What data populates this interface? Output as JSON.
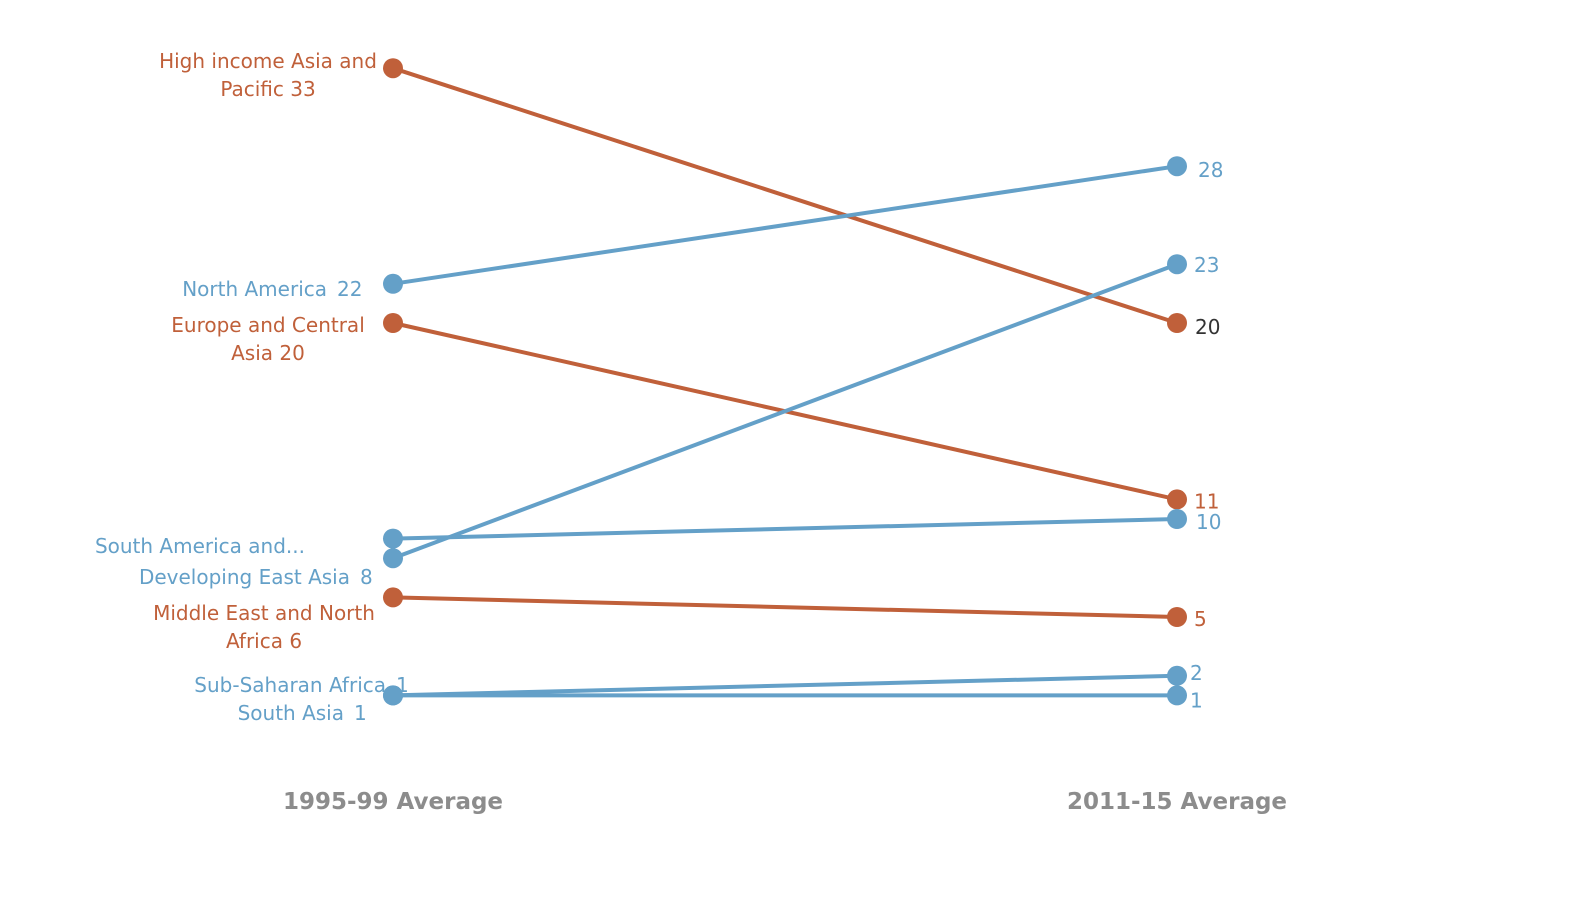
{
  "colors": {
    "orange": "#c0603a",
    "blue": "#64a0c8",
    "dark": "#333333",
    "axis_label": "#8c8c8c"
  },
  "chart_data": {
    "type": "line",
    "chart_style": "slope",
    "title": "",
    "x": [
      "1995-99 Average",
      "2011-15 Average"
    ],
    "ylim": [
      0,
      35
    ],
    "grid": false,
    "series": [
      {
        "label_lines": [
          "High income Asia and",
          "Pacific"
        ],
        "values": [
          33,
          20
        ],
        "color": "orange"
      },
      {
        "label_lines": [
          "North America"
        ],
        "values": [
          22,
          28
        ],
        "color": "blue"
      },
      {
        "label_lines": [
          "Europe and Central",
          "Asia"
        ],
        "values": [
          20,
          11
        ],
        "color": "orange"
      },
      {
        "label_lines": [
          "South America and..."
        ],
        "values": [
          9,
          10
        ],
        "color": "blue"
      },
      {
        "label_lines": [
          "Developing East Asia"
        ],
        "values": [
          8,
          23
        ],
        "color": "blue"
      },
      {
        "label_lines": [
          "Middle East and North",
          "Africa"
        ],
        "values": [
          6,
          5
        ],
        "color": "orange"
      },
      {
        "label_lines": [
          "Sub-Saharan Africa"
        ],
        "values": [
          1,
          2
        ],
        "color": "blue"
      },
      {
        "label_lines": [
          "South Asia"
        ],
        "values": [
          1,
          1
        ],
        "color": "blue"
      }
    ],
    "left_value_labels": {
      "High income Asia and Pacific": "33",
      "North America": "22",
      "Europe and Central Asia": "20",
      "South America and...": "",
      "Developing East Asia": "8",
      "Middle East and North Africa": "6",
      "Sub-Saharan Africa": "1",
      "South Asia": "1"
    },
    "right_value_labels": [
      "20",
      "28",
      "11",
      "10",
      "23",
      "5",
      "2",
      "1"
    ],
    "right_value_label_colors": [
      "dark",
      "blue",
      "orange",
      "blue",
      "blue",
      "orange",
      "blue",
      "blue"
    ]
  }
}
